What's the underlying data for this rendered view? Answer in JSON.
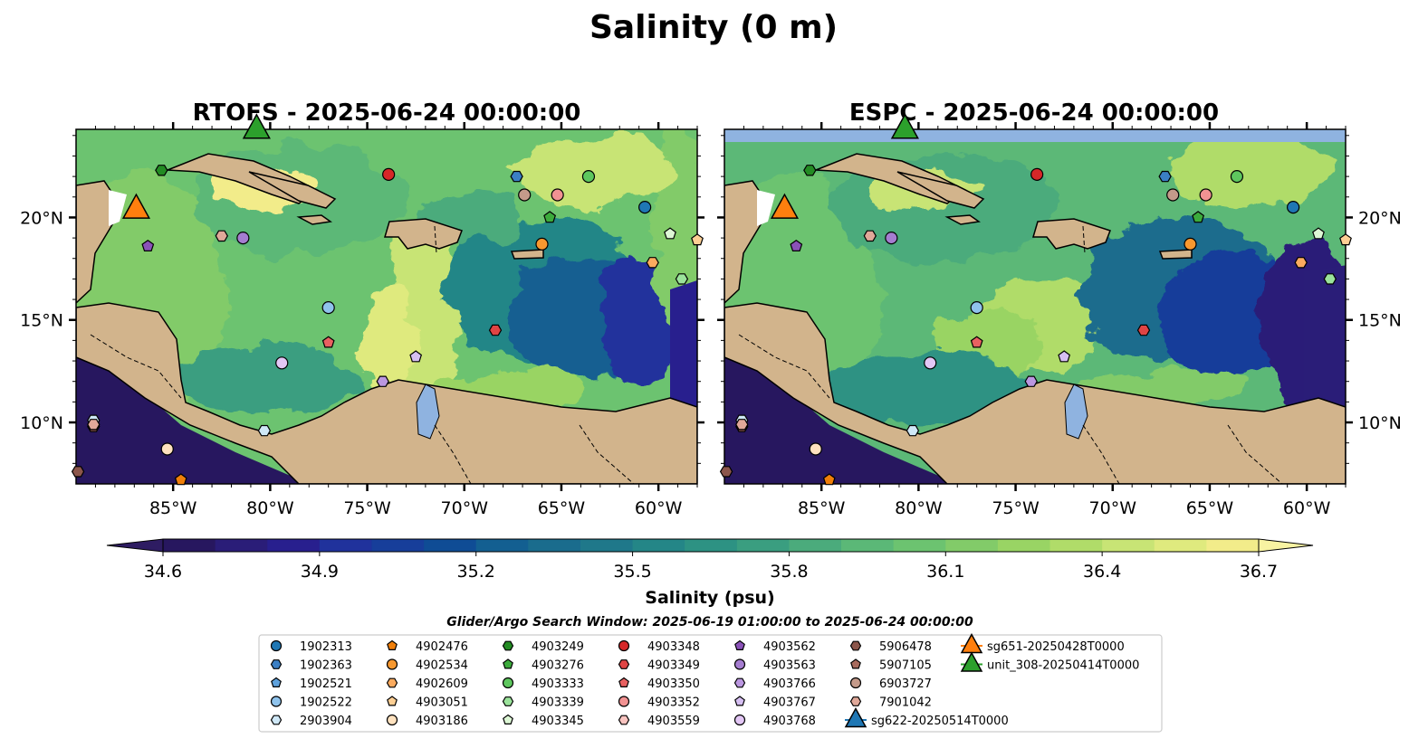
{
  "figure": {
    "title": "Salinity (0 m)",
    "search_window": "Glider/Argo Search Window: 2025-06-19 01:00:00 to 2025-06-24 00:00:00"
  },
  "chart_data": {
    "type": "heatmap",
    "xlim": [
      -90,
      -58
    ],
    "ylim": [
      7,
      24.3
    ],
    "x_ticks": [
      -85,
      -80,
      -75,
      -70,
      -65,
      -60
    ],
    "x_tick_labels": [
      "85°W",
      "80°W",
      "75°W",
      "70°W",
      "65°W",
      "60°W"
    ],
    "y_ticks": [
      10,
      15,
      20
    ],
    "y_tick_labels": [
      "10°N",
      "15°N",
      "20°N"
    ],
    "panels": [
      {
        "title": "RTOFS - 2025-06-24 00:00:00",
        "y_label_side": "left"
      },
      {
        "title": "ESPC - 2025-06-24 00:00:00",
        "y_label_side": "right",
        "top_band_color": "#8fb3e0"
      }
    ],
    "colorbar": {
      "label": "Salinity (psu)",
      "min": 34.6,
      "max": 36.7,
      "step": 0.1,
      "ticks": [
        "34.6",
        "34.9",
        "35.2",
        "35.5",
        "35.8",
        "36.1",
        "36.4",
        "36.7"
      ],
      "colors": [
        "#27175f",
        "#2a1d78",
        "#281f8e",
        "#20329c",
        "#173e9a",
        "#0f4c95",
        "#135f91",
        "#1a6c8d",
        "#1f788a",
        "#248687",
        "#2d9283",
        "#3a9e80",
        "#4bab7c",
        "#5bb877",
        "#6cc370",
        "#82cb69",
        "#99d464",
        "#b0dc69",
        "#c8e475",
        "#dfea7e",
        "#f2ec8a"
      ],
      "extend_min_color": "#2e1c62",
      "extend_max_color": "#f8f3a2"
    },
    "land_color": "#d2b48c",
    "lake_color": "#8fb3e0",
    "series": [
      {
        "name": "1902313",
        "marker": "o",
        "color": "#1f77b4",
        "points": [
          [
            -60.7,
            20.5
          ]
        ]
      },
      {
        "name": "1902363",
        "marker": "h",
        "color": "#3b7fc4",
        "points": [
          [
            -67.3,
            22.0
          ]
        ]
      },
      {
        "name": "1902521",
        "marker": "p",
        "color": "#5fa2dd",
        "points": []
      },
      {
        "name": "1902522",
        "marker": "o",
        "color": "#8fc3ec",
        "points": [
          [
            -77.0,
            15.6
          ]
        ]
      },
      {
        "name": "2903904",
        "marker": "h",
        "color": "#cfe8f7",
        "points": [
          [
            -80.3,
            9.6
          ],
          [
            -89.1,
            10.1
          ]
        ]
      },
      {
        "name": "4902476",
        "marker": "p",
        "color": "#f07f0a",
        "points": [
          [
            -84.6,
            7.2
          ]
        ]
      },
      {
        "name": "4902534",
        "marker": "o",
        "color": "#f7982f",
        "points": [
          [
            -66.0,
            18.7
          ]
        ]
      },
      {
        "name": "4902609",
        "marker": "h",
        "color": "#fbab5f",
        "points": [
          [
            -60.3,
            17.8
          ]
        ]
      },
      {
        "name": "4903051",
        "marker": "p",
        "color": "#fdcf94",
        "points": [
          [
            -58.0,
            18.9
          ]
        ]
      },
      {
        "name": "4903186",
        "marker": "o",
        "color": "#ffe2bf",
        "points": [
          [
            -85.3,
            8.7
          ]
        ]
      },
      {
        "name": "4903249",
        "marker": "h",
        "color": "#238b23",
        "points": [
          [
            -85.6,
            22.3
          ]
        ]
      },
      {
        "name": "4903276",
        "marker": "p",
        "color": "#3cab3c",
        "points": [
          [
            -65.6,
            20.0
          ]
        ]
      },
      {
        "name": "4903333",
        "marker": "o",
        "color": "#5ec75e",
        "points": [
          [
            -63.6,
            22.0
          ]
        ]
      },
      {
        "name": "4903339",
        "marker": "h",
        "color": "#9be39b",
        "points": [
          [
            -58.8,
            17.0
          ]
        ]
      },
      {
        "name": "4903345",
        "marker": "p",
        "color": "#ddf7d5",
        "points": [
          [
            -59.4,
            19.2
          ]
        ]
      },
      {
        "name": "4903348",
        "marker": "o",
        "color": "#d62728",
        "points": [
          [
            -73.9,
            22.1
          ]
        ]
      },
      {
        "name": "4903349",
        "marker": "h",
        "color": "#e04444",
        "points": [
          [
            -68.4,
            14.5
          ]
        ]
      },
      {
        "name": "4903350",
        "marker": "p",
        "color": "#e96161",
        "points": [
          [
            -77.0,
            13.9
          ]
        ]
      },
      {
        "name": "4903352",
        "marker": "o",
        "color": "#f29292",
        "points": [
          [
            -65.2,
            21.1
          ]
        ]
      },
      {
        "name": "4903559",
        "marker": "h",
        "color": "#f9c4c0",
        "points": []
      },
      {
        "name": "4903562",
        "marker": "p",
        "color": "#8a52b8",
        "points": [
          [
            -86.3,
            18.6
          ]
        ]
      },
      {
        "name": "4903563",
        "marker": "o",
        "color": "#a57dd0",
        "points": [
          [
            -81.4,
            19.0
          ]
        ]
      },
      {
        "name": "4903766",
        "marker": "h",
        "color": "#bb97e0",
        "points": [
          [
            -74.2,
            12.0
          ]
        ]
      },
      {
        "name": "4903767",
        "marker": "p",
        "color": "#d6bff2",
        "points": [
          [
            -72.5,
            13.2
          ]
        ]
      },
      {
        "name": "4903768",
        "marker": "o",
        "color": "#e3c7f5",
        "points": [
          [
            -79.4,
            12.9
          ]
        ]
      },
      {
        "name": "5906478",
        "marker": "h",
        "color": "#8c564b",
        "points": [
          [
            -89.1,
            9.8
          ],
          [
            -89.9,
            7.6
          ]
        ]
      },
      {
        "name": "5907105",
        "marker": "p",
        "color": "#a86b5e",
        "points": []
      },
      {
        "name": "6903727",
        "marker": "o",
        "color": "#c49a8a",
        "points": [
          [
            -66.9,
            21.1
          ]
        ]
      },
      {
        "name": "7901042",
        "marker": "h",
        "color": "#e0a899",
        "points": [
          [
            -89.1,
            9.9
          ],
          [
            -82.5,
            19.1
          ]
        ]
      },
      {
        "name": "sg622-20250514T0000",
        "marker": "^",
        "color": "#1f77b4",
        "line_color": "#1f77b4",
        "points": []
      },
      {
        "name": "sg651-20250428T0000",
        "marker": "^",
        "color": "#ff7f0e",
        "line_color": "#ff7f0e",
        "points": [
          [
            -86.9,
            20.4
          ]
        ]
      },
      {
        "name": "unit_308-20250414T0000",
        "marker": "^",
        "color": "#2ca02c",
        "line_color": "#2ca02c",
        "points": [
          [
            -80.7,
            24.3
          ]
        ]
      }
    ]
  }
}
